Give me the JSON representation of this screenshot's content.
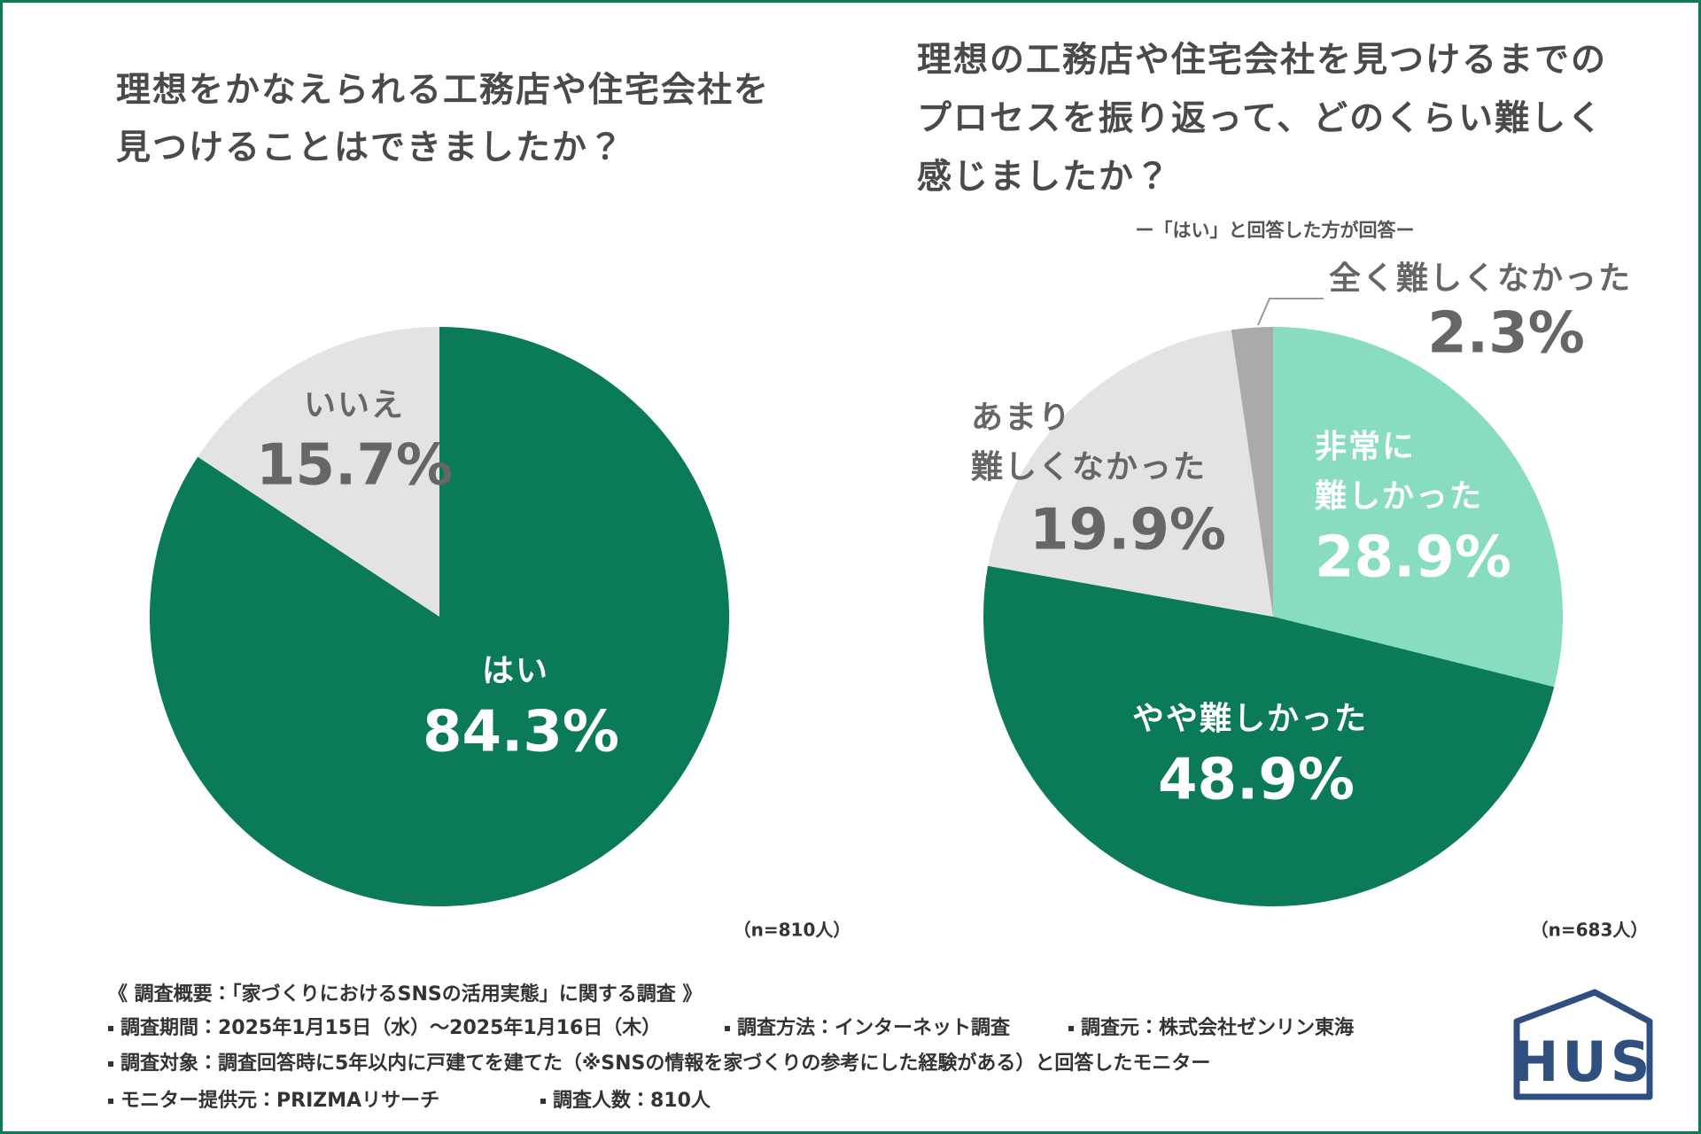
{
  "chart_data": [
    {
      "type": "pie",
      "title": [
        "理想をかなえられる工務店や住宅会社を",
        "見つけることはできましたか？"
      ],
      "categories": [
        "はい",
        "いいえ"
      ],
      "values": [
        84.3,
        15.7
      ],
      "value_labels": [
        "84.3%",
        "15.7%"
      ],
      "colors": [
        "#0b7a58",
        "#e3e3e3"
      ],
      "note": "（n=810人）"
    },
    {
      "type": "pie",
      "title": [
        "理想の工務店や住宅会社を見つけるまでの",
        "プロセスを振り返って、どのくらい難しく",
        "感じましたか？"
      ],
      "subtitle": "ー「はい」と回答した方が回答ー",
      "categories": [
        "非常に難しかった",
        "やや難しかった",
        "あまり難しくなかった",
        "全く難しくなかった"
      ],
      "values": [
        28.9,
        48.9,
        19.9,
        2.3
      ],
      "value_labels": [
        "28.9%",
        "48.9%",
        "19.9%",
        "2.3%"
      ],
      "colors": [
        "#88dcc0",
        "#0b7a58",
        "#e3e3e3",
        "#aaaaaa"
      ],
      "note": "（n=683人）"
    }
  ],
  "footer": {
    "heading": "《 調査概要：「家づくりにおけるSNSの活用実態」に関する調査 》",
    "items": [
      "調査期間：2025年1月15日（水）～2025年1月16日（木）",
      "調査方法：インターネット調査",
      "調査元：株式会社ゼンリン東海",
      "調査対象：調査回答時に5年以内に戸建てを建てた（※SNSの情報を家づくりの参考にした経験がある）と回答したモニター",
      "モニター提供元：PRIZMAリサーチ",
      "調査人数：810人"
    ]
  },
  "logo": {
    "text": "HUS"
  }
}
